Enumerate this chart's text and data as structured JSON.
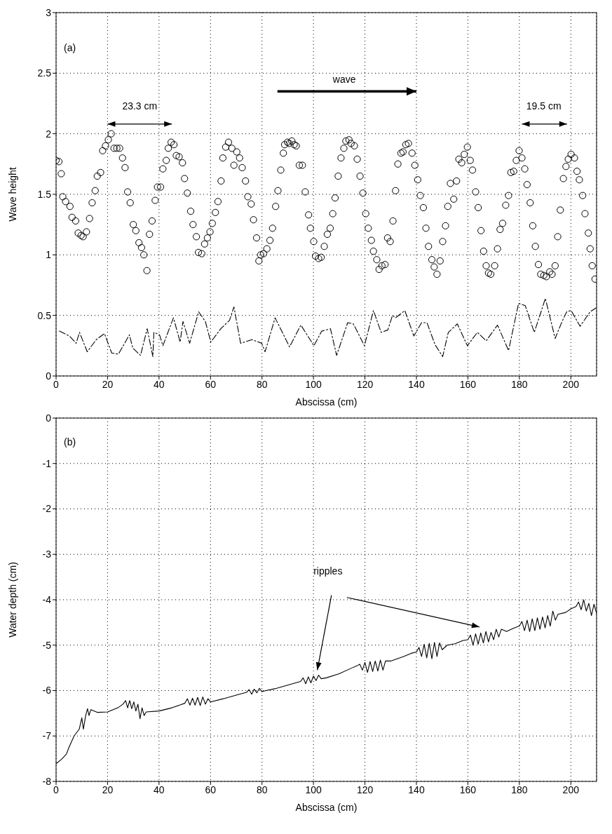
{
  "chart_data": [
    {
      "type": "scatter",
      "xlabel": "Abscissa (cm)",
      "ylabel": "Wave height",
      "xlim": [
        0,
        210
      ],
      "ylim": [
        0,
        3
      ],
      "xticks": [
        0,
        20,
        40,
        60,
        80,
        100,
        120,
        140,
        160,
        180,
        200
      ],
      "yticks": [
        0,
        0.5,
        1,
        1.5,
        2,
        2.5,
        3
      ],
      "grid": true,
      "line_style": "dashed",
      "annotations": [
        "(a)",
        "wave",
        "23.3 cm",
        "19.5 cm"
      ],
      "series": [
        {
          "type": "scatter",
          "marker": "circle",
          "color": "#000000",
          "x": [
            0,
            1.1,
            2,
            2.6,
            3.7,
            5.4,
            6.2,
            7.6,
            8.6,
            9.7,
            10.5,
            11.8,
            13,
            14,
            15.2,
            16,
            17.3,
            18.1,
            19.2,
            20.3,
            21.4,
            22.5,
            23.6,
            24.7,
            25.8,
            26.8,
            27.8,
            28.8,
            30,
            31,
            32.2,
            33.2,
            34.1,
            35.3,
            36.3,
            37.3,
            38.5,
            39.4,
            40.6,
            41.5,
            42.8,
            43.6,
            44.7,
            45.8,
            46.7,
            47.8,
            49.1,
            49.9,
            51,
            52.3,
            53.2,
            54.5,
            55.3,
            56.6,
            57.7,
            58.8,
            59.8,
            60.7,
            61.9,
            62.9,
            64.1,
            64.8,
            65.9,
            67,
            68.3,
            69.1,
            70.2,
            71.3,
            72.3,
            73.6,
            74.5,
            75.8,
            76.7,
            77.9,
            78.8,
            79.5,
            80.6,
            81.9,
            83.1,
            84.1,
            85.3,
            86.2,
            87.3,
            88.3,
            88.8,
            89.9,
            90.6,
            91.6,
            92.5,
            93.3,
            94.5,
            95.7,
            96.8,
            98.1,
            98.8,
            100.1,
            100.8,
            102,
            103,
            104.2,
            105.4,
            106.5,
            107.5,
            108.4,
            109.6,
            110.7,
            111.8,
            112.6,
            113.8,
            114.6,
            115.9,
            117,
            118.1,
            119.2,
            120.3,
            121.3,
            122.5,
            123.3,
            124.6,
            125.5,
            126.6,
            127.8,
            128.8,
            129.8,
            130.9,
            131.9,
            132.8,
            134,
            134.8,
            135.9,
            136.9,
            138.3,
            139.4,
            140.5,
            141.5,
            142.7,
            143.7,
            144.7,
            146,
            146.9,
            148,
            149.2,
            150.2,
            151.3,
            152.2,
            153.2,
            154.5,
            155.6,
            156.5,
            157.6,
            158.6,
            159.8,
            160.9,
            161.8,
            163,
            164,
            165.1,
            166.1,
            167.1,
            168,
            168.9,
            170.4,
            171.5,
            172.5,
            173.5,
            174.7,
            175.8,
            176.7,
            177.8,
            178.8,
            179.9,
            181,
            182.1,
            183,
            184.2,
            185.2,
            186.2,
            187.4,
            188.3,
            189.5,
            190.5,
            191.8,
            192.7,
            193.9,
            194.9,
            195.9,
            197.1,
            198.1,
            199,
            200.1,
            201.4,
            202.4,
            203.3,
            204.6,
            205.5,
            206.8,
            207.5,
            208.3,
            209.4
          ],
          "values": [
            1.78,
            1.77,
            1.67,
            1.48,
            1.44,
            1.4,
            1.31,
            1.28,
            1.18,
            1.16,
            1.15,
            1.19,
            1.3,
            1.43,
            1.53,
            1.65,
            1.68,
            1.86,
            1.9,
            1.95,
            2,
            1.88,
            1.88,
            1.88,
            1.8,
            1.72,
            1.52,
            1.43,
            1.25,
            1.2,
            1.1,
            1.06,
            1,
            0.87,
            1.17,
            1.28,
            1.45,
            1.56,
            1.56,
            1.71,
            1.78,
            1.88,
            1.93,
            1.91,
            1.82,
            1.81,
            1.76,
            1.63,
            1.51,
            1.36,
            1.25,
            1.15,
            1.02,
            1.01,
            1.09,
            1.14,
            1.19,
            1.26,
            1.35,
            1.44,
            1.61,
            1.8,
            1.89,
            1.93,
            1.88,
            1.74,
            1.85,
            1.8,
            1.72,
            1.61,
            1.48,
            1.42,
            1.29,
            1.14,
            0.95,
            1,
            1.01,
            1.05,
            1.12,
            1.22,
            1.4,
            1.53,
            1.7,
            1.84,
            1.91,
            1.93,
            1.92,
            1.94,
            1.91,
            1.9,
            1.74,
            1.74,
            1.52,
            1.33,
            1.22,
            1.11,
            0.99,
            0.97,
            0.98,
            1.07,
            1.17,
            1.22,
            1.34,
            1.47,
            1.65,
            1.8,
            1.88,
            1.94,
            1.95,
            1.92,
            1.9,
            1.79,
            1.65,
            1.51,
            1.34,
            1.22,
            1.12,
            1.03,
            0.96,
            0.88,
            0.91,
            0.92,
            1.14,
            1.11,
            1.28,
            1.53,
            1.75,
            1.84,
            1.85,
            1.91,
            1.92,
            1.84,
            1.74,
            1.62,
            1.49,
            1.39,
            1.22,
            1.07,
            0.96,
            0.9,
            0.84,
            0.95,
            1.11,
            1.24,
            1.4,
            1.59,
            1.46,
            1.61,
            1.79,
            1.76,
            1.83,
            1.89,
            1.78,
            1.7,
            1.52,
            1.39,
            1.2,
            1.03,
            0.91,
            0.85,
            0.84,
            0.91,
            1.05,
            1.21,
            1.26,
            1.41,
            1.49,
            1.68,
            1.69,
            1.78,
            1.86,
            1.8,
            1.71,
            1.58,
            1.43,
            1.24,
            1.07,
            0.92,
            0.84,
            0.83,
            0.82,
            0.86,
            0.84,
            0.91,
            1.15,
            1.37,
            1.63,
            1.73,
            1.79,
            1.83,
            1.8,
            1.69,
            1.62,
            1.49,
            1.34,
            1.18,
            1.05,
            0.91,
            0.8
          ]
        },
        {
          "type": "line",
          "color": "#000000",
          "x": [
            1.3,
            5.2,
            7.8,
            9.1,
            12.1,
            15.6,
            18.8,
            21.6,
            24.2,
            28.5,
            29.8,
            32.8,
            35.4,
            37.6,
            38,
            40.2,
            41.5,
            45.6,
            48.2,
            49.3,
            51.9,
            55.4,
            58,
            60.1,
            64,
            67.4,
            69.1,
            71.7,
            76.1,
            79.9,
            81.2,
            85.1,
            90.7,
            95.1,
            100.2,
            103.2,
            106.6,
            109,
            113.3,
            115.5,
            119.8,
            123.3,
            126.3,
            128.9,
            130.7,
            131.9,
            135.5,
            139,
            142,
            144.1,
            147.2,
            150.2,
            152.4,
            155.9,
            159.8,
            163.7,
            167.1,
            171.5,
            175.8,
            179.7,
            182.3,
            185.8,
            190.1,
            193.9,
            196.6,
            198.4,
            200.1,
            203.6,
            207.5,
            209.7
          ],
          "values": [
            0.37,
            0.33,
            0.27,
            0.36,
            0.2,
            0.3,
            0.35,
            0.19,
            0.18,
            0.34,
            0.23,
            0.17,
            0.39,
            0.16,
            0.36,
            0.34,
            0.25,
            0.48,
            0.28,
            0.45,
            0.27,
            0.53,
            0.45,
            0.28,
            0.39,
            0.46,
            0.57,
            0.27,
            0.3,
            0.27,
            0.2,
            0.48,
            0.24,
            0.42,
            0.25,
            0.37,
            0.39,
            0.17,
            0.44,
            0.43,
            0.25,
            0.54,
            0.36,
            0.38,
            0.5,
            0.48,
            0.54,
            0.33,
            0.44,
            0.44,
            0.26,
            0.16,
            0.36,
            0.43,
            0.25,
            0.36,
            0.29,
            0.42,
            0.21,
            0.6,
            0.58,
            0.36,
            0.64,
            0.31,
            0.45,
            0.53,
            0.54,
            0.41,
            0.53,
            0.56
          ]
        }
      ]
    },
    {
      "type": "line",
      "xlabel": "Abscissa (cm)",
      "ylabel": "Water depth (cm)",
      "xlim": [
        0,
        210
      ],
      "ylim": [
        -8,
        0
      ],
      "xticks": [
        0,
        20,
        40,
        60,
        80,
        100,
        120,
        140,
        160,
        180,
        200
      ],
      "yticks": [
        -8,
        -7,
        -6,
        -5,
        -4,
        -3,
        -2,
        -1,
        0
      ],
      "grid": true,
      "line_style": "solid",
      "annotations": [
        "(b)",
        "ripples"
      ],
      "series": [
        {
          "color": "#000000",
          "x": [
            0,
            2,
            4,
            5,
            7,
            9,
            10,
            10.6,
            11.5,
            12.2,
            12.8,
            13.5,
            16,
            20,
            24,
            26,
            27,
            27.8,
            28.6,
            29.4,
            30.2,
            31,
            31.8,
            32.6,
            33.4,
            34.2,
            35,
            40,
            45,
            50,
            51,
            52,
            53,
            54,
            55,
            56,
            57,
            58,
            59,
            60,
            65,
            70,
            74,
            75,
            76,
            77,
            78,
            79,
            80,
            85,
            90,
            95,
            96,
            97,
            98,
            99,
            100,
            101,
            102,
            103,
            105,
            110,
            115,
            117,
            118,
            119,
            120,
            121,
            122,
            123,
            124,
            125,
            126,
            127,
            128,
            130,
            135,
            138,
            140,
            141,
            142,
            143,
            144,
            145,
            146,
            147,
            148,
            149,
            150,
            152,
            155,
            158,
            160,
            161,
            162,
            163,
            164,
            165,
            166,
            167,
            168,
            169,
            170,
            171,
            172,
            173,
            175,
            178,
            180,
            181,
            182,
            183,
            184,
            185,
            186,
            187,
            188,
            189,
            190,
            191,
            192,
            193,
            194,
            195,
            198,
            200,
            202,
            203,
            204,
            205,
            206,
            207,
            208,
            209,
            210
          ],
          "values": [
            -7.61,
            -7.52,
            -7.4,
            -7.25,
            -7,
            -6.85,
            -6.6,
            -6.85,
            -6.55,
            -6.4,
            -6.55,
            -6.42,
            -6.48,
            -6.47,
            -6.38,
            -6.3,
            -6.22,
            -6.38,
            -6.22,
            -6.4,
            -6.25,
            -6.45,
            -6.3,
            -6.62,
            -6.38,
            -6.55,
            -6.47,
            -6.45,
            -6.38,
            -6.28,
            -6.18,
            -6.32,
            -6.17,
            -6.32,
            -6.15,
            -6.33,
            -6.14,
            -6.3,
            -6.18,
            -6.25,
            -6.18,
            -6.1,
            -6.04,
            -5.98,
            -6.08,
            -5.97,
            -6.05,
            -5.95,
            -6.02,
            -5.96,
            -5.88,
            -5.8,
            -5.72,
            -5.85,
            -5.7,
            -5.83,
            -5.68,
            -5.78,
            -5.66,
            -5.74,
            -5.72,
            -5.63,
            -5.5,
            -5.45,
            -5.42,
            -5.55,
            -5.38,
            -5.6,
            -5.36,
            -5.58,
            -5.35,
            -5.57,
            -5.33,
            -5.55,
            -5.35,
            -5.35,
            -5.25,
            -5.18,
            -5.15,
            -5.05,
            -5.25,
            -4.98,
            -5.28,
            -4.96,
            -5.3,
            -4.94,
            -5.25,
            -4.95,
            -5.1,
            -5,
            -4.97,
            -4.9,
            -4.88,
            -4.78,
            -5,
            -4.75,
            -4.98,
            -4.73,
            -4.95,
            -4.7,
            -4.93,
            -4.72,
            -4.88,
            -4.65,
            -4.82,
            -4.65,
            -4.7,
            -4.62,
            -4.58,
            -4.48,
            -4.68,
            -4.45,
            -4.7,
            -4.42,
            -4.68,
            -4.4,
            -4.65,
            -4.38,
            -4.62,
            -4.35,
            -4.58,
            -4.25,
            -4.45,
            -4.32,
            -4.28,
            -4.2,
            -4.15,
            -4.05,
            -4.22,
            -4,
            -4.25,
            -4.08,
            -4.35,
            -4.1,
            -4.3
          ]
        }
      ]
    }
  ]
}
